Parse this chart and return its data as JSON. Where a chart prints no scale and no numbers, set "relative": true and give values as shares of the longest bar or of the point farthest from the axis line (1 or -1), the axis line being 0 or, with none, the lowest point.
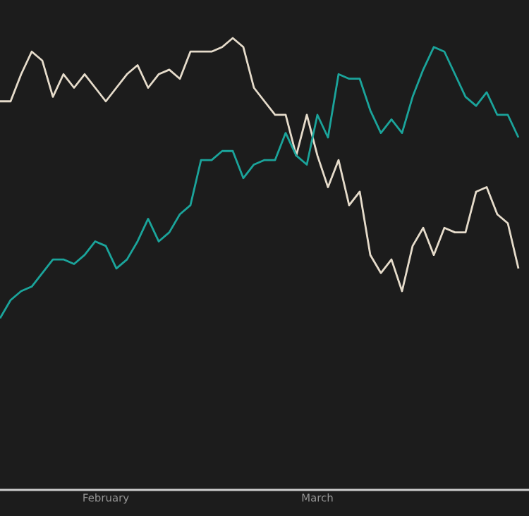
{
  "chart_data": {
    "type": "line",
    "relative": true,
    "categories": [
      null,
      null,
      null,
      null,
      null,
      null,
      null,
      null,
      null,
      null,
      "February",
      null,
      null,
      null,
      null,
      null,
      null,
      null,
      null,
      null,
      null,
      null,
      null,
      null,
      null,
      null,
      null,
      null,
      null,
      null,
      "March",
      null,
      null,
      null,
      null,
      null,
      null,
      null,
      null,
      null,
      null,
      null,
      null,
      null,
      null,
      null,
      null,
      null,
      null,
      null
    ],
    "series": [
      {
        "color": "#e6dccb",
        "values": [
          0.86,
          0.86,
          0.92,
          0.97,
          0.95,
          0.87,
          0.92,
          0.89,
          0.92,
          0.89,
          0.86,
          0.89,
          0.92,
          0.94,
          0.89,
          0.92,
          0.93,
          0.91,
          0.97,
          0.97,
          0.97,
          0.98,
          1,
          0.98,
          0.89,
          0.86,
          0.83,
          0.83,
          0.74,
          0.83,
          0.74,
          0.67,
          0.73,
          0.63,
          0.66,
          0.52,
          0.48,
          0.51,
          0.44,
          0.54,
          0.58,
          0.52,
          0.58,
          0.57,
          0.57,
          0.66,
          0.67,
          0.61,
          0.59,
          0.49
        ]
      },
      {
        "color": "#1ba49b",
        "values": [
          0.38,
          0.42,
          0.44,
          0.45,
          0.48,
          0.51,
          0.51,
          0.5,
          0.52,
          0.55,
          0.54,
          0.49,
          0.51,
          0.55,
          0.6,
          0.55,
          0.57,
          0.61,
          0.63,
          0.73,
          0.73,
          0.75,
          0.75,
          0.69,
          0.72,
          0.73,
          0.73,
          0.79,
          0.74,
          0.72,
          0.83,
          0.78,
          0.92,
          0.91,
          0.91,
          0.84,
          0.79,
          0.82,
          0.79,
          0.87,
          0.93,
          0.98,
          0.97,
          0.92,
          0.87,
          0.85,
          0.88,
          0.83,
          0.83,
          0.78
        ]
      }
    ],
    "marker": "none",
    "line_style": "solid"
  }
}
